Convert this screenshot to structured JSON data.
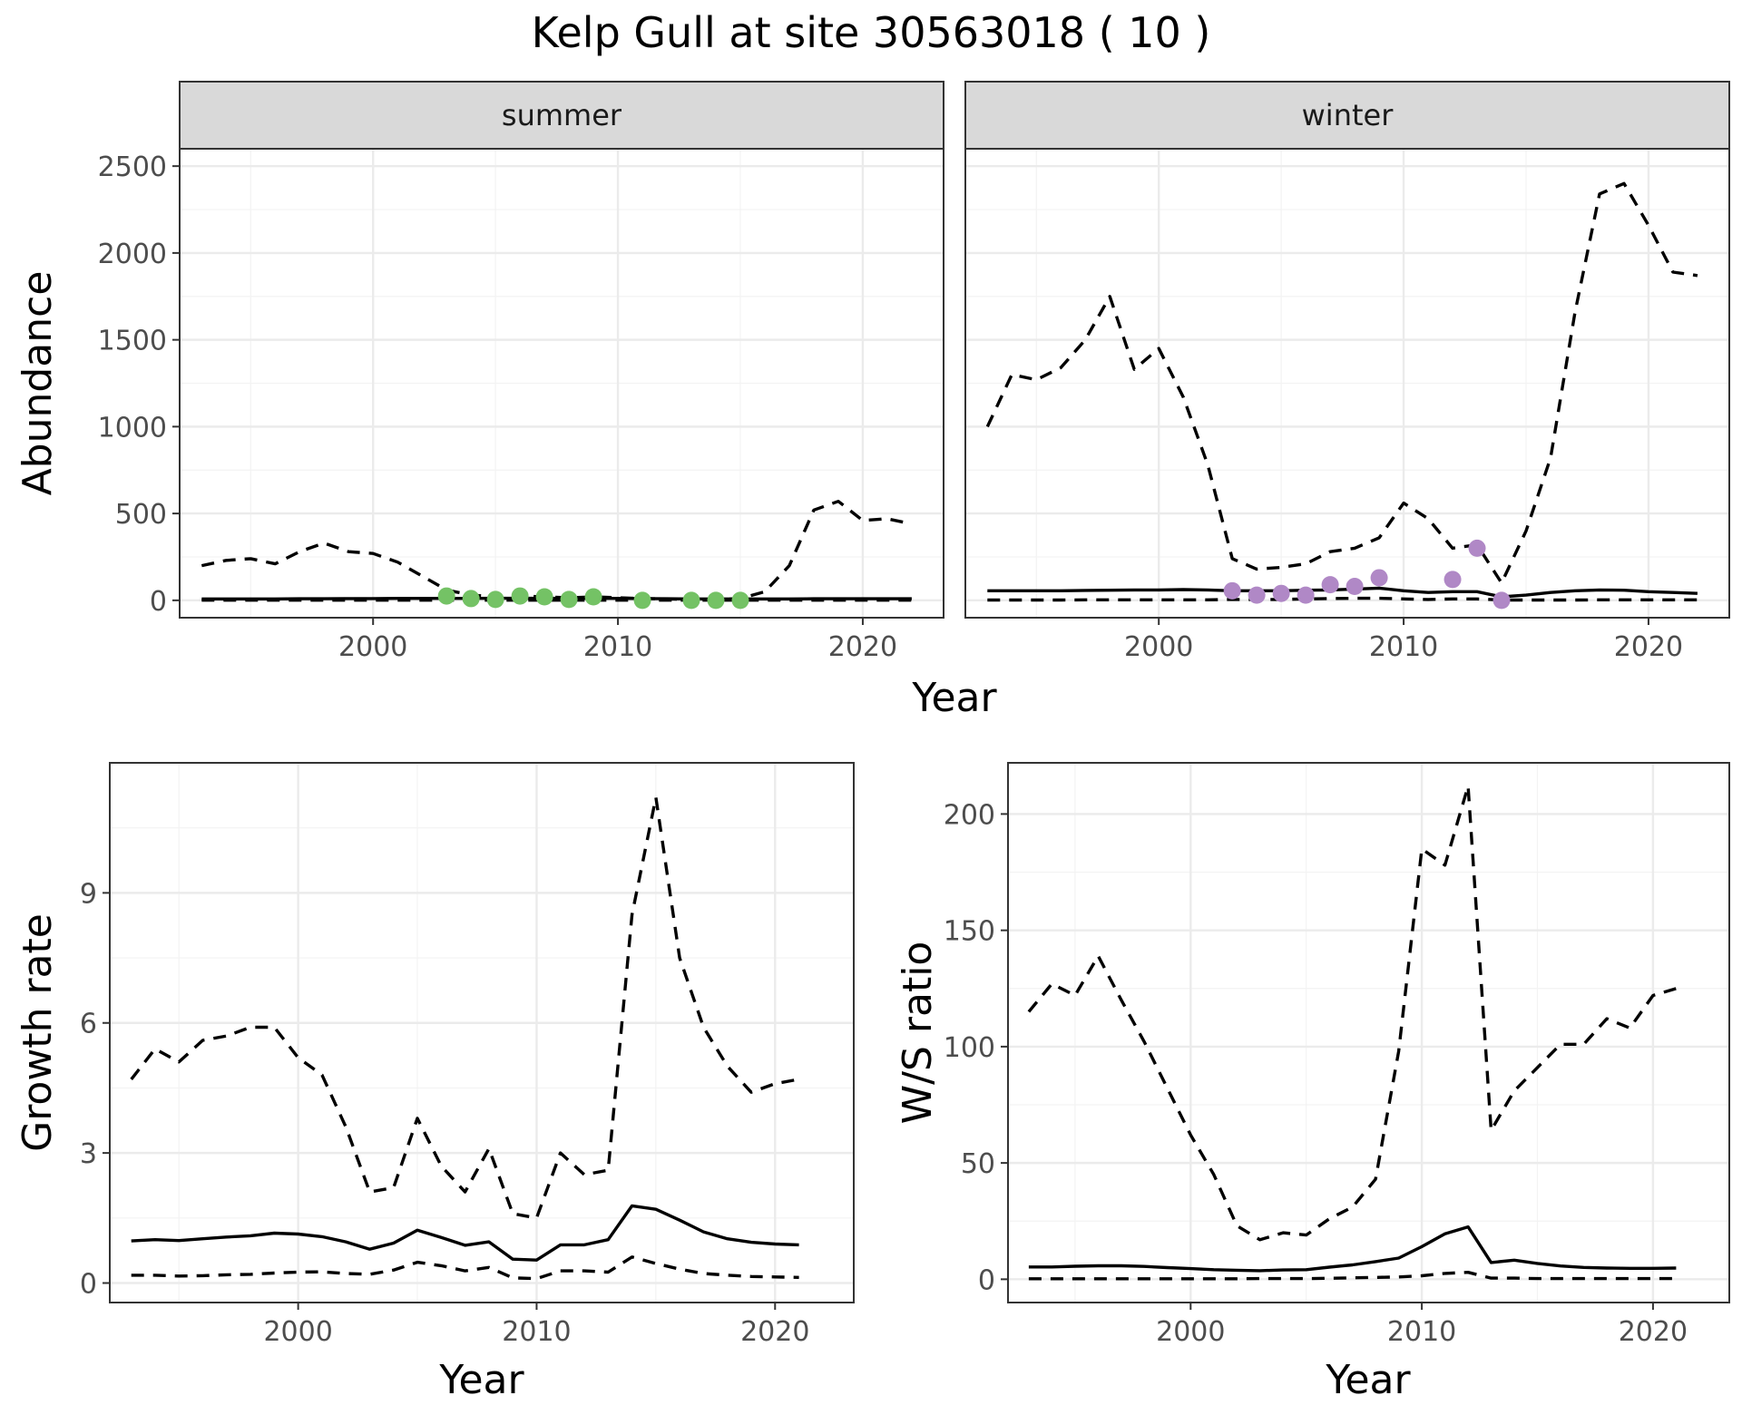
{
  "title": "Kelp Gull at site 30563018 ( 10 )",
  "colors": {
    "summer_points": "#74c265",
    "winter_points": "#b088c6",
    "lines": "#000000"
  },
  "chart_data": [
    {
      "id": "summer",
      "type": "line",
      "strip_label": "summer",
      "xlabel": "Year",
      "ylabel": "Abundance",
      "xlim": [
        1992.1,
        2023.3
      ],
      "ylim": [
        -100,
        2600
      ],
      "xticks": [
        2000,
        2010,
        2020
      ],
      "yticks": [
        0,
        500,
        1000,
        1500,
        2000,
        2500
      ],
      "series": [
        {
          "style": "dashed",
          "x": [
            1993,
            1994,
            1995,
            1996,
            1997,
            1998,
            1999,
            2000,
            2001,
            2002,
            2003,
            2004,
            2005,
            2006,
            2007,
            2008,
            2009,
            2010,
            2011,
            2012,
            2013,
            2014,
            2015,
            2016,
            2017,
            2018,
            2019,
            2020,
            2021,
            2022
          ],
          "values": [
            200,
            230,
            240,
            210,
            280,
            330,
            280,
            270,
            220,
            140,
            60,
            30,
            20,
            25,
            20,
            15,
            20,
            15,
            10,
            8,
            5,
            5,
            10,
            50,
            200,
            520,
            570,
            460,
            470,
            440
          ]
        },
        {
          "style": "solid",
          "x": [
            1993,
            1994,
            1995,
            1996,
            1997,
            1998,
            1999,
            2000,
            2001,
            2002,
            2003,
            2004,
            2005,
            2006,
            2007,
            2008,
            2009,
            2010,
            2011,
            2012,
            2013,
            2014,
            2015,
            2016,
            2017,
            2018,
            2019,
            2020,
            2021,
            2022
          ],
          "values": [
            8,
            8,
            8,
            8,
            9,
            9,
            10,
            10,
            11,
            11,
            11,
            11,
            12,
            12,
            12,
            11,
            11,
            11,
            10,
            9,
            8,
            8,
            8,
            8,
            8,
            9,
            9,
            9,
            9,
            9
          ]
        },
        {
          "style": "dashed",
          "x": [
            1993,
            1994,
            1995,
            1996,
            1997,
            1998,
            1999,
            2000,
            2001,
            2002,
            2003,
            2004,
            2005,
            2006,
            2007,
            2008,
            2009,
            2010,
            2011,
            2012,
            2013,
            2014,
            2015,
            2016,
            2017,
            2018,
            2019,
            2020,
            2021,
            2022
          ],
          "values": [
            1,
            1,
            1,
            1,
            1,
            1,
            1,
            1,
            1,
            1,
            1,
            1,
            1,
            1,
            1,
            1,
            1,
            1,
            1,
            1,
            1,
            1,
            1,
            1,
            1,
            1,
            1,
            1,
            1,
            1
          ]
        }
      ],
      "points": {
        "x": [
          2003,
          2004,
          2005,
          2006,
          2007,
          2008,
          2009,
          2011,
          2013,
          2014,
          2015
        ],
        "y": [
          25,
          10,
          5,
          25,
          20,
          5,
          20,
          0,
          0,
          0,
          0
        ]
      }
    },
    {
      "id": "winter",
      "type": "line",
      "strip_label": "winter",
      "xlabel": "Year",
      "ylabel": "Abundance",
      "xlim": [
        1992.1,
        2023.3
      ],
      "ylim": [
        -100,
        2600
      ],
      "xticks": [
        2000,
        2010,
        2020
      ],
      "yticks": [
        0,
        500,
        1000,
        1500,
        2000,
        2500
      ],
      "series": [
        {
          "style": "dashed",
          "x": [
            1993,
            1994,
            1995,
            1996,
            1997,
            1998,
            1999,
            2000,
            2001,
            2002,
            2003,
            2004,
            2005,
            2006,
            2007,
            2008,
            2009,
            2010,
            2011,
            2012,
            2013,
            2014,
            2015,
            2016,
            2017,
            2018,
            2019,
            2020,
            2021,
            2022
          ],
          "values": [
            1000,
            1300,
            1270,
            1340,
            1500,
            1750,
            1330,
            1450,
            1170,
            780,
            240,
            180,
            190,
            210,
            280,
            300,
            360,
            560,
            470,
            300,
            320,
            100,
            400,
            820,
            1660,
            2340,
            2400,
            2160,
            1890,
            1870
          ]
        },
        {
          "style": "solid",
          "x": [
            1993,
            1994,
            1995,
            1996,
            1997,
            1998,
            1999,
            2000,
            2001,
            2002,
            2003,
            2004,
            2005,
            2006,
            2007,
            2008,
            2009,
            2010,
            2011,
            2012,
            2013,
            2014,
            2015,
            2016,
            2017,
            2018,
            2019,
            2020,
            2021,
            2022
          ],
          "values": [
            55,
            55,
            55,
            55,
            57,
            58,
            60,
            60,
            62,
            60,
            55,
            55,
            55,
            58,
            60,
            65,
            70,
            55,
            45,
            50,
            50,
            20,
            30,
            45,
            55,
            60,
            58,
            50,
            45,
            40
          ]
        },
        {
          "style": "dashed",
          "x": [
            1993,
            1994,
            1995,
            1996,
            1997,
            1998,
            1999,
            2000,
            2001,
            2002,
            2003,
            2004,
            2005,
            2006,
            2007,
            2008,
            2009,
            2010,
            2011,
            2012,
            2013,
            2014,
            2015,
            2016,
            2017,
            2018,
            2019,
            2020,
            2021,
            2022
          ],
          "values": [
            2,
            2,
            2,
            2,
            3,
            3,
            3,
            3,
            3,
            3,
            5,
            5,
            5,
            8,
            10,
            12,
            12,
            8,
            5,
            8,
            8,
            2,
            2,
            2,
            2,
            3,
            3,
            3,
            3,
            3
          ]
        }
      ],
      "points": {
        "x": [
          2003,
          2004,
          2005,
          2006,
          2007,
          2008,
          2009,
          2012,
          2013,
          2014
        ],
        "y": [
          55,
          30,
          40,
          30,
          90,
          80,
          130,
          120,
          300,
          0
        ]
      }
    },
    {
      "id": "growth",
      "type": "line",
      "xlabel": "Year",
      "ylabel": "Growth rate",
      "xlim": [
        1992.1,
        2023.3
      ],
      "ylim": [
        -0.45,
        12.0
      ],
      "xticks": [
        2000,
        2010,
        2020
      ],
      "yticks": [
        0,
        3,
        6,
        9
      ],
      "series": [
        {
          "style": "dashed",
          "x": [
            1993,
            1994,
            1995,
            1996,
            1997,
            1998,
            1999,
            2000,
            2001,
            2002,
            2003,
            2004,
            2005,
            2006,
            2007,
            2008,
            2009,
            2010,
            2011,
            2012,
            2013,
            2014,
            2015,
            2016,
            2017,
            2018,
            2019,
            2020,
            2021
          ],
          "values": [
            4.7,
            5.4,
            5.1,
            5.6,
            5.7,
            5.9,
            5.9,
            5.2,
            4.8,
            3.6,
            2.1,
            2.2,
            3.8,
            2.7,
            2.1,
            3.1,
            1.6,
            1.5,
            3.0,
            2.5,
            2.6,
            8.5,
            11.2,
            7.5,
            5.9,
            5.0,
            4.4,
            4.6,
            4.7
          ]
        },
        {
          "style": "solid",
          "x": [
            1993,
            1994,
            1995,
            1996,
            1997,
            1998,
            1999,
            2000,
            2001,
            2002,
            2003,
            2004,
            2005,
            2006,
            2007,
            2008,
            2009,
            2010,
            2011,
            2012,
            2013,
            2014,
            2015,
            2016,
            2017,
            2018,
            2019,
            2020,
            2021
          ],
          "values": [
            0.97,
            1.0,
            0.98,
            1.02,
            1.06,
            1.09,
            1.15,
            1.13,
            1.07,
            0.95,
            0.78,
            0.92,
            1.22,
            1.05,
            0.87,
            0.95,
            0.55,
            0.53,
            0.88,
            0.88,
            1.0,
            1.78,
            1.7,
            1.45,
            1.18,
            1.02,
            0.94,
            0.9,
            0.88
          ]
        },
        {
          "style": "dashed",
          "x": [
            1993,
            1994,
            1995,
            1996,
            1997,
            1998,
            1999,
            2000,
            2001,
            2002,
            2003,
            2004,
            2005,
            2006,
            2007,
            2008,
            2009,
            2010,
            2011,
            2012,
            2013,
            2014,
            2015,
            2016,
            2017,
            2018,
            2019,
            2020,
            2021
          ],
          "values": [
            0.18,
            0.18,
            0.16,
            0.17,
            0.19,
            0.2,
            0.23,
            0.25,
            0.26,
            0.22,
            0.2,
            0.3,
            0.48,
            0.4,
            0.28,
            0.36,
            0.12,
            0.1,
            0.28,
            0.28,
            0.25,
            0.6,
            0.45,
            0.32,
            0.22,
            0.18,
            0.15,
            0.14,
            0.13
          ]
        }
      ]
    },
    {
      "id": "ratio",
      "type": "line",
      "xlabel": "Year",
      "ylabel": "W/S ratio",
      "xlim": [
        1992.1,
        2023.3
      ],
      "ylim": [
        -10,
        222
      ],
      "xticks": [
        2000,
        2010,
        2020
      ],
      "yticks": [
        0,
        50,
        100,
        150,
        200
      ],
      "series": [
        {
          "style": "dashed",
          "x": [
            1993,
            1994,
            1995,
            1996,
            1997,
            1998,
            1999,
            2000,
            2001,
            2002,
            2003,
            2004,
            2005,
            2006,
            2007,
            2008,
            2009,
            2010,
            2011,
            2012,
            2013,
            2014,
            2015,
            2016,
            2017,
            2018,
            2019,
            2020,
            2021
          ],
          "values": [
            115,
            127,
            122,
            139,
            120,
            102,
            82,
            62,
            45,
            23,
            17,
            20,
            19,
            26,
            31,
            43,
            98,
            185,
            178,
            212,
            64,
            81,
            91,
            101,
            101,
            112,
            108,
            122,
            125
          ]
        },
        {
          "style": "solid",
          "x": [
            1993,
            1994,
            1995,
            1996,
            1997,
            1998,
            1999,
            2000,
            2001,
            2002,
            2003,
            2004,
            2005,
            2006,
            2007,
            2008,
            2009,
            2010,
            2011,
            2012,
            2013,
            2014,
            2015,
            2016,
            2017,
            2018,
            2019,
            2020,
            2021
          ],
          "values": [
            5.3,
            5.3,
            5.6,
            5.8,
            5.8,
            5.5,
            5.0,
            4.6,
            4.1,
            3.9,
            3.7,
            4.0,
            4.1,
            5.2,
            6.2,
            7.6,
            9.1,
            14.0,
            19.5,
            22.5,
            7.2,
            8.2,
            6.8,
            5.7,
            5.1,
            4.8,
            4.7,
            4.7,
            4.8
          ]
        },
        {
          "style": "dashed",
          "x": [
            1993,
            1994,
            1995,
            1996,
            1997,
            1998,
            1999,
            2000,
            2001,
            2002,
            2003,
            2004,
            2005,
            2006,
            2007,
            2008,
            2009,
            2010,
            2011,
            2012,
            2013,
            2014,
            2015,
            2016,
            2017,
            2018,
            2019,
            2020,
            2021
          ],
          "values": [
            0.2,
            0.2,
            0.2,
            0.2,
            0.2,
            0.2,
            0.2,
            0.2,
            0.2,
            0.2,
            0.3,
            0.3,
            0.3,
            0.4,
            0.6,
            0.8,
            1.0,
            1.5,
            2.5,
            3.0,
            0.5,
            0.5,
            0.3,
            0.3,
            0.3,
            0.3,
            0.3,
            0.3,
            0.3
          ]
        }
      ]
    }
  ]
}
